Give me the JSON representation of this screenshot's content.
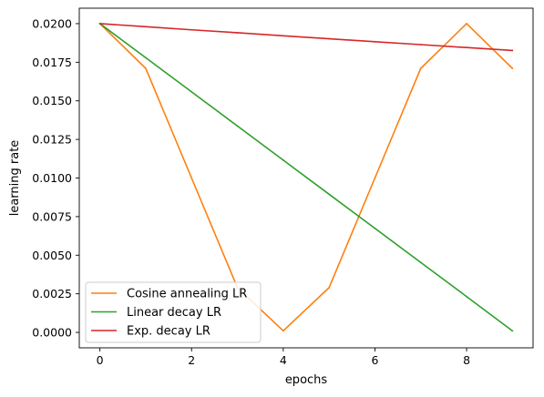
{
  "chart_data": {
    "type": "line",
    "title": "",
    "xlabel": "epochs",
    "ylabel": "learning rate",
    "xlim": [
      -0.45,
      9.45
    ],
    "ylim": [
      -0.001,
      0.021
    ],
    "grid": false,
    "legend_position": "lower-left",
    "x_ticks": [
      0,
      2,
      4,
      6,
      8
    ],
    "x_tick_labels": [
      "0",
      "2",
      "4",
      "6",
      "8"
    ],
    "y_ticks": [
      0.0,
      0.0025,
      0.005,
      0.0075,
      0.01,
      0.0125,
      0.015,
      0.0175,
      0.02
    ],
    "y_tick_labels": [
      "0.0000",
      "0.0025",
      "0.0050",
      "0.0075",
      "0.0100",
      "0.0125",
      "0.0150",
      "0.0175",
      "0.0200"
    ],
    "x": [
      0,
      1,
      2,
      3,
      4,
      5,
      6,
      7,
      8,
      9
    ],
    "series": [
      {
        "name": "Cosine annealing LR",
        "color": "#ff7f0e",
        "values": [
          0.02,
          0.0171,
          0.01,
          0.0029,
          0.0001,
          0.0029,
          0.01,
          0.0171,
          0.02,
          0.0171
        ]
      },
      {
        "name": "Linear decay LR",
        "color": "#2ca02c",
        "values": [
          0.02,
          0.01779,
          0.01558,
          0.01337,
          0.01116,
          0.00895,
          0.00674,
          0.00453,
          0.00232,
          0.0001
        ]
      },
      {
        "name": "Exp. decay LR",
        "color": "#d62728",
        "values": [
          0.02,
          0.0198,
          0.0196,
          0.01941,
          0.01921,
          0.01902,
          0.01883,
          0.01864,
          0.01845,
          0.01826
        ]
      }
    ]
  }
}
